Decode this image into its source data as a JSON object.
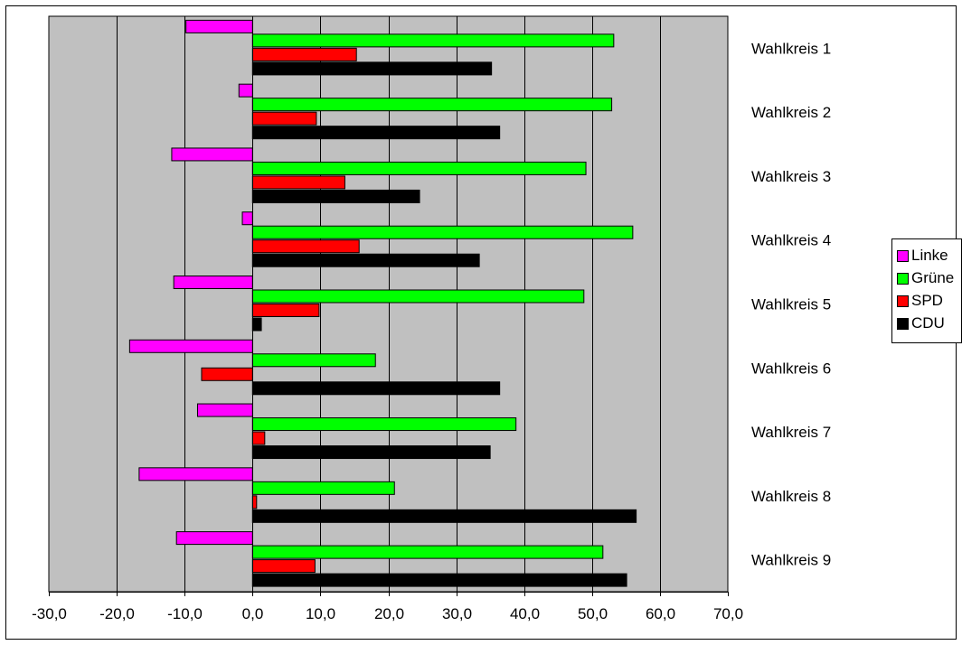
{
  "chart_data": {
    "type": "bar",
    "orientation": "horizontal",
    "categories": [
      "Wahlkreis 1",
      "Wahlkreis 2",
      "Wahlkreis 3",
      "Wahlkreis 4",
      "Wahlkreis 5",
      "Wahlkreis 6",
      "Wahlkreis 7",
      "Wahlkreis 8",
      "Wahlkreis 9"
    ],
    "series": [
      {
        "name": "Linke",
        "color": "#ff00ff",
        "values": [
          -9.8,
          -2.0,
          -11.9,
          -1.5,
          -11.6,
          -18.1,
          -8.1,
          -16.7,
          -11.2
        ]
      },
      {
        "name": "Grüne",
        "color": "#00ff00",
        "values": [
          53.2,
          52.9,
          49.1,
          56.0,
          48.8,
          18.1,
          38.8,
          20.9,
          51.6
        ]
      },
      {
        "name": "SPD",
        "color": "#ff0000",
        "values": [
          15.3,
          9.4,
          13.6,
          15.7,
          9.8,
          -7.5,
          1.8,
          0.6,
          9.2
        ]
      },
      {
        "name": "CDU",
        "color": "#000000",
        "values": [
          35.2,
          36.4,
          24.6,
          33.4,
          1.3,
          36.4,
          35.0,
          56.5,
          55.1
        ]
      }
    ],
    "xlim": [
      -30,
      70
    ],
    "xticks": [
      "-30,0",
      "-20,0",
      "-10,0",
      "0,0",
      "10,0",
      "20,0",
      "30,0",
      "40,0",
      "50,0",
      "60,0",
      "70,0"
    ],
    "grid": true,
    "plot_background": "#c0c0c0",
    "legend_position": "right",
    "title": "",
    "xlabel": "",
    "ylabel": ""
  }
}
